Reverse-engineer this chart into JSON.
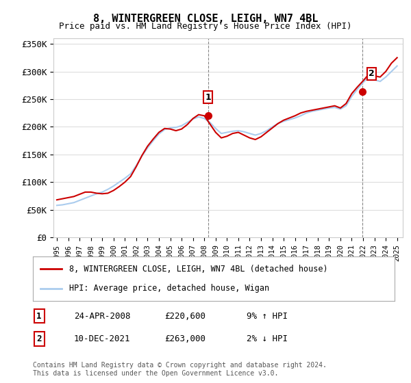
{
  "title": "8, WINTERGREEN CLOSE, LEIGH, WN7 4BL",
  "subtitle": "Price paid vs. HM Land Registry's House Price Index (HPI)",
  "ylabel_ticks": [
    "£0",
    "£50K",
    "£100K",
    "£150K",
    "£200K",
    "£250K",
    "£300K",
    "£350K"
  ],
  "ytick_values": [
    0,
    50000,
    100000,
    150000,
    200000,
    250000,
    300000,
    350000
  ],
  "ylim": [
    0,
    360000
  ],
  "xlim_start": 1995.0,
  "xlim_end": 2025.5,
  "legend_line1": "8, WINTERGREEN CLOSE, LEIGH, WN7 4BL (detached house)",
  "legend_line2": "HPI: Average price, detached house, Wigan",
  "annotation1_label": "1",
  "annotation1_date": "24-APR-2008",
  "annotation1_price": "£220,600",
  "annotation1_hpi": "9% ↑ HPI",
  "annotation1_year": 2008.32,
  "annotation1_value": 220600,
  "annotation2_label": "2",
  "annotation2_date": "10-DEC-2021",
  "annotation2_price": "£263,000",
  "annotation2_hpi": "2% ↓ HPI",
  "annotation2_year": 2021.95,
  "annotation2_value": 263000,
  "footnote": "Contains HM Land Registry data © Crown copyright and database right 2024.\nThis data is licensed under the Open Government Licence v3.0.",
  "red_color": "#cc0000",
  "blue_color": "#aaccee",
  "background_color": "#ffffff",
  "grid_color": "#dddddd",
  "hpi_years": [
    1995.0,
    1995.5,
    1996.0,
    1996.5,
    1997.0,
    1997.5,
    1998.0,
    1998.5,
    1999.0,
    1999.5,
    2000.0,
    2000.5,
    2001.0,
    2001.5,
    2002.0,
    2002.5,
    2003.0,
    2003.5,
    2004.0,
    2004.5,
    2005.0,
    2005.5,
    2006.0,
    2006.5,
    2007.0,
    2007.5,
    2008.0,
    2008.5,
    2009.0,
    2009.5,
    2010.0,
    2010.5,
    2011.0,
    2011.5,
    2012.0,
    2012.5,
    2013.0,
    2013.5,
    2014.0,
    2014.5,
    2015.0,
    2015.5,
    2016.0,
    2016.5,
    2017.0,
    2017.5,
    2018.0,
    2018.5,
    2019.0,
    2019.5,
    2020.0,
    2020.5,
    2021.0,
    2021.5,
    2022.0,
    2022.5,
    2023.0,
    2023.5,
    2024.0,
    2024.5,
    2025.0
  ],
  "hpi_values": [
    58000,
    59000,
    61000,
    63000,
    67000,
    71000,
    75000,
    79000,
    82000,
    87000,
    93000,
    100000,
    107000,
    115000,
    130000,
    147000,
    162000,
    175000,
    187000,
    195000,
    198000,
    199000,
    202000,
    208000,
    214000,
    218000,
    215000,
    208000,
    197000,
    188000,
    190000,
    192000,
    193000,
    191000,
    188000,
    185000,
    188000,
    193000,
    200000,
    206000,
    210000,
    213000,
    216000,
    220000,
    225000,
    228000,
    230000,
    232000,
    234000,
    235000,
    232000,
    238000,
    255000,
    268000,
    280000,
    290000,
    285000,
    282000,
    290000,
    300000,
    310000
  ],
  "red_years": [
    1995.0,
    1995.5,
    1996.0,
    1996.5,
    1997.0,
    1997.5,
    1998.0,
    1998.5,
    1999.0,
    1999.5,
    2000.0,
    2000.5,
    2001.0,
    2001.5,
    2002.0,
    2002.5,
    2003.0,
    2003.5,
    2004.0,
    2004.5,
    2005.0,
    2005.5,
    2006.0,
    2006.5,
    2007.0,
    2007.5,
    2008.0,
    2008.5,
    2009.0,
    2009.5,
    2010.0,
    2010.5,
    2011.0,
    2011.5,
    2012.0,
    2012.5,
    2013.0,
    2013.5,
    2014.0,
    2014.5,
    2015.0,
    2015.5,
    2016.0,
    2016.5,
    2017.0,
    2017.5,
    2018.0,
    2018.5,
    2019.0,
    2019.5,
    2020.0,
    2020.5,
    2021.0,
    2021.5,
    2022.0,
    2022.5,
    2023.0,
    2023.5,
    2024.0,
    2024.5,
    2025.0
  ],
  "red_values": [
    68000,
    70000,
    72000,
    74000,
    78000,
    82000,
    82000,
    80000,
    79000,
    80000,
    85000,
    92000,
    100000,
    110000,
    128000,
    148000,
    165000,
    178000,
    190000,
    197000,
    196000,
    193000,
    196000,
    204000,
    215000,
    222000,
    220000,
    205000,
    190000,
    180000,
    183000,
    188000,
    190000,
    185000,
    180000,
    177000,
    182000,
    190000,
    198000,
    206000,
    212000,
    216000,
    220000,
    225000,
    228000,
    230000,
    232000,
    234000,
    236000,
    238000,
    234000,
    242000,
    260000,
    272000,
    283000,
    295000,
    292000,
    290000,
    300000,
    315000,
    325000
  ],
  "xtick_years": [
    1995,
    1996,
    1997,
    1998,
    1999,
    2000,
    2001,
    2002,
    2003,
    2004,
    2005,
    2006,
    2007,
    2008,
    2009,
    2010,
    2011,
    2012,
    2013,
    2014,
    2015,
    2016,
    2017,
    2018,
    2019,
    2020,
    2021,
    2022,
    2023,
    2024,
    2025
  ]
}
